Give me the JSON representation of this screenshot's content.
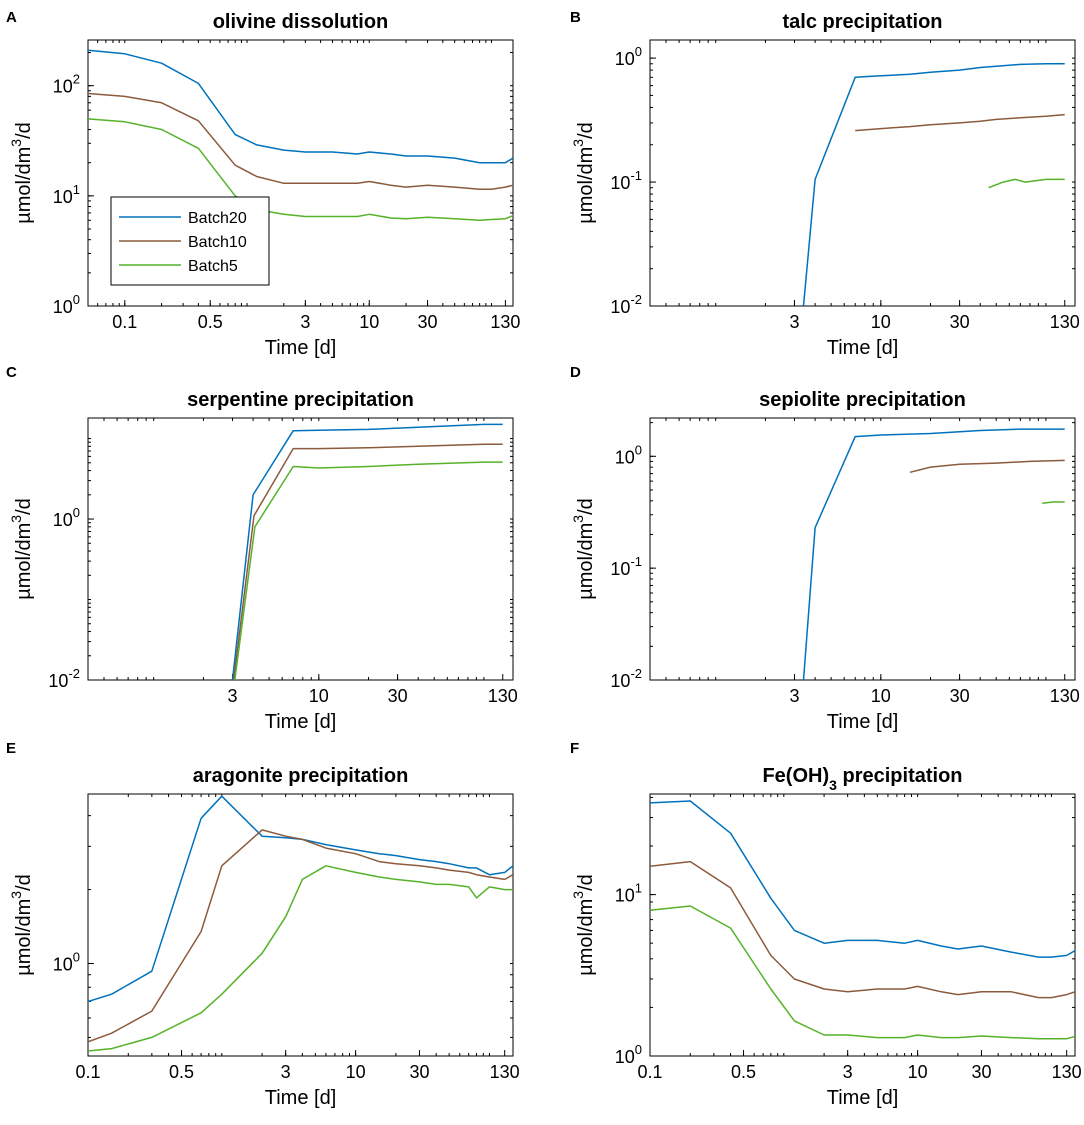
{
  "colors": {
    "Batch20": "#0072BD",
    "Batch10": "#8C5A3C",
    "Batch5": "#55B22A"
  },
  "legend": {
    "entries": [
      "Batch20",
      "Batch10",
      "Batch5"
    ]
  },
  "chart_data": [
    {
      "letter": "A",
      "type": "line",
      "title": "olivine dissolution",
      "title_parts": [
        {
          "text": "olivine dissolution"
        }
      ],
      "xscale": "log",
      "yscale": "log",
      "xlim": [
        0.05,
        150
      ],
      "ylim": [
        1,
        260
      ],
      "xticks": [
        0.1,
        0.5,
        3,
        10,
        30,
        130
      ],
      "xtick_labels": [
        "0.1",
        "0.5",
        "3",
        "10",
        "30",
        "130"
      ],
      "yticks": [
        1,
        10,
        100
      ],
      "ytick_labels": [
        [
          "10",
          "0"
        ],
        [
          "10",
          "1"
        ],
        [
          "10",
          "2"
        ]
      ],
      "xlabel": "Time [d]",
      "ylabel": [
        "µmol/dm",
        "3",
        "/d"
      ],
      "legend": true,
      "x": [
        0.05,
        0.1,
        0.2,
        0.4,
        0.8,
        1.2,
        2,
        3,
        5,
        8,
        10,
        15,
        20,
        30,
        50,
        80,
        100,
        130,
        150
      ],
      "series": [
        {
          "name": "Batch20",
          "values": [
            210,
            195,
            160,
            105,
            36,
            29,
            26,
            25,
            25,
            24,
            25,
            24,
            23,
            23,
            22,
            20,
            20,
            20,
            22
          ]
        },
        {
          "name": "Batch10",
          "values": [
            85,
            80,
            70,
            48,
            19,
            15,
            13,
            13,
            13,
            13,
            13.5,
            12.5,
            12,
            12.5,
            12,
            11.5,
            11.5,
            12,
            12.5
          ]
        },
        {
          "name": "Batch5",
          "values": [
            50,
            47,
            40,
            27,
            10,
            7.5,
            6.8,
            6.5,
            6.5,
            6.5,
            6.8,
            6.3,
            6.2,
            6.4,
            6.2,
            6.0,
            6.1,
            6.2,
            6.6
          ]
        }
      ]
    },
    {
      "letter": "B",
      "type": "line",
      "title": "talc precipitation",
      "title_parts": [
        {
          "text": "talc precipitation"
        }
      ],
      "xscale": "log",
      "yscale": "log",
      "xlim": [
        0.4,
        150
      ],
      "ylim": [
        0.01,
        1.4
      ],
      "xticks": [
        3,
        10,
        30,
        130
      ],
      "xtick_labels": [
        "3",
        "10",
        "30",
        "130"
      ],
      "yticks": [
        0.01,
        0.1,
        1
      ],
      "ytick_labels": [
        [
          "10",
          "-2"
        ],
        [
          "10",
          "-1"
        ],
        [
          "10",
          "0"
        ]
      ],
      "xlabel": "Time [d]",
      "ylabel": [
        "µmol/dm",
        "3",
        "/d"
      ],
      "legend": false,
      "series": [
        {
          "name": "Batch20",
          "x": [
            3.4,
            4,
            7,
            10,
            15,
            20,
            30,
            40,
            50,
            70,
            100,
            130
          ],
          "values": [
            0.01,
            0.105,
            0.7,
            0.72,
            0.74,
            0.77,
            0.8,
            0.84,
            0.86,
            0.89,
            0.9,
            0.9
          ]
        },
        {
          "name": "Batch10",
          "x": [
            7,
            10,
            15,
            20,
            30,
            40,
            50,
            70,
            100,
            130
          ],
          "values": [
            0.26,
            0.27,
            0.28,
            0.29,
            0.3,
            0.31,
            0.32,
            0.33,
            0.34,
            0.35
          ]
        },
        {
          "name": "Batch5",
          "x": [
            45,
            55,
            65,
            75,
            100,
            130
          ],
          "values": [
            0.09,
            0.1,
            0.105,
            0.1,
            0.105,
            0.105
          ]
        }
      ]
    },
    {
      "letter": "C",
      "type": "line",
      "title": "serpentine precipitation",
      "title_parts": [
        {
          "text": "serpentine precipitation"
        }
      ],
      "xscale": "log",
      "yscale": "log",
      "xlim": [
        0.4,
        150
      ],
      "ylim": [
        0.01,
        18
      ],
      "xticks": [
        3,
        10,
        30,
        130
      ],
      "xtick_labels": [
        "3",
        "10",
        "30",
        "130"
      ],
      "yticks": [
        0.01,
        1
      ],
      "ytick_labels": [
        [
          "10",
          "-2"
        ],
        [
          "10",
          "0"
        ]
      ],
      "xlabel": "Time [d]",
      "ylabel": [
        "µmol/dm",
        "3",
        "/d"
      ],
      "legend": false,
      "series": [
        {
          "name": "Batch20",
          "x": [
            3,
            4,
            7,
            10,
            20,
            40,
            100,
            130
          ],
          "values": [
            0.01,
            2.0,
            12.5,
            12.7,
            13,
            13.8,
            15,
            15
          ]
        },
        {
          "name": "Batch10",
          "x": [
            3.05,
            4.05,
            7,
            10,
            20,
            40,
            100,
            130
          ],
          "values": [
            0.01,
            1.1,
            7.5,
            7.5,
            7.7,
            8,
            8.5,
            8.5
          ]
        },
        {
          "name": "Batch5",
          "x": [
            3.1,
            4.1,
            7,
            10,
            20,
            40,
            100,
            130
          ],
          "values": [
            0.01,
            0.8,
            4.5,
            4.3,
            4.5,
            4.8,
            5.1,
            5.1
          ]
        }
      ]
    },
    {
      "letter": "D",
      "type": "line",
      "title": "sepiolite precipitation",
      "title_parts": [
        {
          "text": "sepiolite precipitation"
        }
      ],
      "xscale": "log",
      "yscale": "log",
      "xlim": [
        0.4,
        150
      ],
      "ylim": [
        0.01,
        2.2
      ],
      "xticks": [
        3,
        10,
        30,
        130
      ],
      "xtick_labels": [
        "3",
        "10",
        "30",
        "130"
      ],
      "yticks": [
        0.01,
        0.1,
        1
      ],
      "ytick_labels": [
        [
          "10",
          "-2"
        ],
        [
          "10",
          "-1"
        ],
        [
          "10",
          "0"
        ]
      ],
      "xlabel": "Time [d]",
      "ylabel": [
        "µmol/dm",
        "3",
        "/d"
      ],
      "legend": false,
      "series": [
        {
          "name": "Batch20",
          "x": [
            3.4,
            4,
            7,
            10,
            20,
            40,
            70,
            130
          ],
          "values": [
            0.01,
            0.23,
            1.5,
            1.55,
            1.6,
            1.7,
            1.75,
            1.75
          ]
        },
        {
          "name": "Batch10",
          "x": [
            15,
            20,
            30,
            50,
            80,
            130
          ],
          "values": [
            0.72,
            0.8,
            0.85,
            0.87,
            0.9,
            0.92
          ]
        },
        {
          "name": "Batch5",
          "x": [
            95,
            110,
            130
          ],
          "values": [
            0.38,
            0.39,
            0.39
          ]
        }
      ]
    },
    {
      "letter": "E",
      "type": "line",
      "title": "aragonite precipitation",
      "title_parts": [
        {
          "text": "aragonite precipitation"
        }
      ],
      "xscale": "log",
      "yscale": "log",
      "xlim": [
        0.1,
        150
      ],
      "ylim": [
        0.42,
        4.9
      ],
      "xticks": [
        0.1,
        0.5,
        3,
        10,
        30,
        130
      ],
      "xtick_labels": [
        "0.1",
        "0.5",
        "3",
        "10",
        "30",
        "130"
      ],
      "yticks": [
        1
      ],
      "ytick_labels": [
        [
          "10",
          "0"
        ]
      ],
      "xlabel": "Time [d]",
      "ylabel": [
        "µmol/dm",
        "3",
        "/d"
      ],
      "legend": false,
      "x": [
        0.1,
        0.15,
        0.3,
        0.7,
        1,
        2,
        3,
        4,
        6,
        10,
        15,
        20,
        30,
        40,
        50,
        70,
        80,
        100,
        130,
        150
      ],
      "series": [
        {
          "name": "Batch20",
          "values": [
            0.7,
            0.75,
            0.93,
            3.9,
            4.8,
            3.3,
            3.25,
            3.2,
            3.05,
            2.9,
            2.8,
            2.75,
            2.65,
            2.6,
            2.55,
            2.45,
            2.45,
            2.3,
            2.35,
            2.5
          ]
        },
        {
          "name": "Batch10",
          "values": [
            0.48,
            0.52,
            0.64,
            1.35,
            2.5,
            3.5,
            3.3,
            3.2,
            2.95,
            2.8,
            2.6,
            2.55,
            2.5,
            2.45,
            2.4,
            2.35,
            2.3,
            2.25,
            2.2,
            2.3
          ]
        },
        {
          "name": "Batch5",
          "values": [
            0.44,
            0.45,
            0.5,
            0.63,
            0.75,
            1.1,
            1.55,
            2.2,
            2.5,
            2.35,
            2.25,
            2.2,
            2.15,
            2.1,
            2.1,
            2.05,
            1.85,
            2.05,
            2.0,
            2.0
          ]
        }
      ]
    },
    {
      "letter": "F",
      "type": "line",
      "title": "Fe(OH)3 precipitation",
      "title_parts": [
        {
          "text": "Fe(OH)"
        },
        {
          "text": "3",
          "sub": true
        },
        {
          "text": " precipitation"
        }
      ],
      "xscale": "log",
      "yscale": "log",
      "xlim": [
        0.1,
        150
      ],
      "ylim": [
        1,
        42
      ],
      "xticks": [
        0.1,
        0.5,
        3,
        10,
        30,
        130
      ],
      "xtick_labels": [
        "0.1",
        "0.5",
        "3",
        "10",
        "30",
        "130"
      ],
      "yticks": [
        1,
        10
      ],
      "ytick_labels": [
        [
          "10",
          "0"
        ],
        [
          "10",
          "1"
        ]
      ],
      "xlabel": "Time [d]",
      "ylabel": [
        "µmol/dm",
        "3",
        "/d"
      ],
      "legend": false,
      "x": [
        0.1,
        0.2,
        0.4,
        0.8,
        1.2,
        2,
        3,
        5,
        8,
        10,
        15,
        20,
        30,
        50,
        80,
        100,
        130,
        150
      ],
      "series": [
        {
          "name": "Batch20",
          "values": [
            37,
            38,
            24,
            9.5,
            6.0,
            5.0,
            5.2,
            5.2,
            5.0,
            5.2,
            4.8,
            4.6,
            4.8,
            4.4,
            4.1,
            4.1,
            4.2,
            4.5
          ]
        },
        {
          "name": "Batch10",
          "values": [
            15,
            16,
            11,
            4.2,
            3.0,
            2.6,
            2.5,
            2.6,
            2.6,
            2.7,
            2.5,
            2.4,
            2.5,
            2.5,
            2.3,
            2.3,
            2.4,
            2.5
          ]
        },
        {
          "name": "Batch5",
          "values": [
            8,
            8.5,
            6.2,
            2.6,
            1.65,
            1.35,
            1.35,
            1.3,
            1.3,
            1.35,
            1.3,
            1.3,
            1.33,
            1.3,
            1.28,
            1.28,
            1.28,
            1.32
          ]
        }
      ]
    }
  ]
}
